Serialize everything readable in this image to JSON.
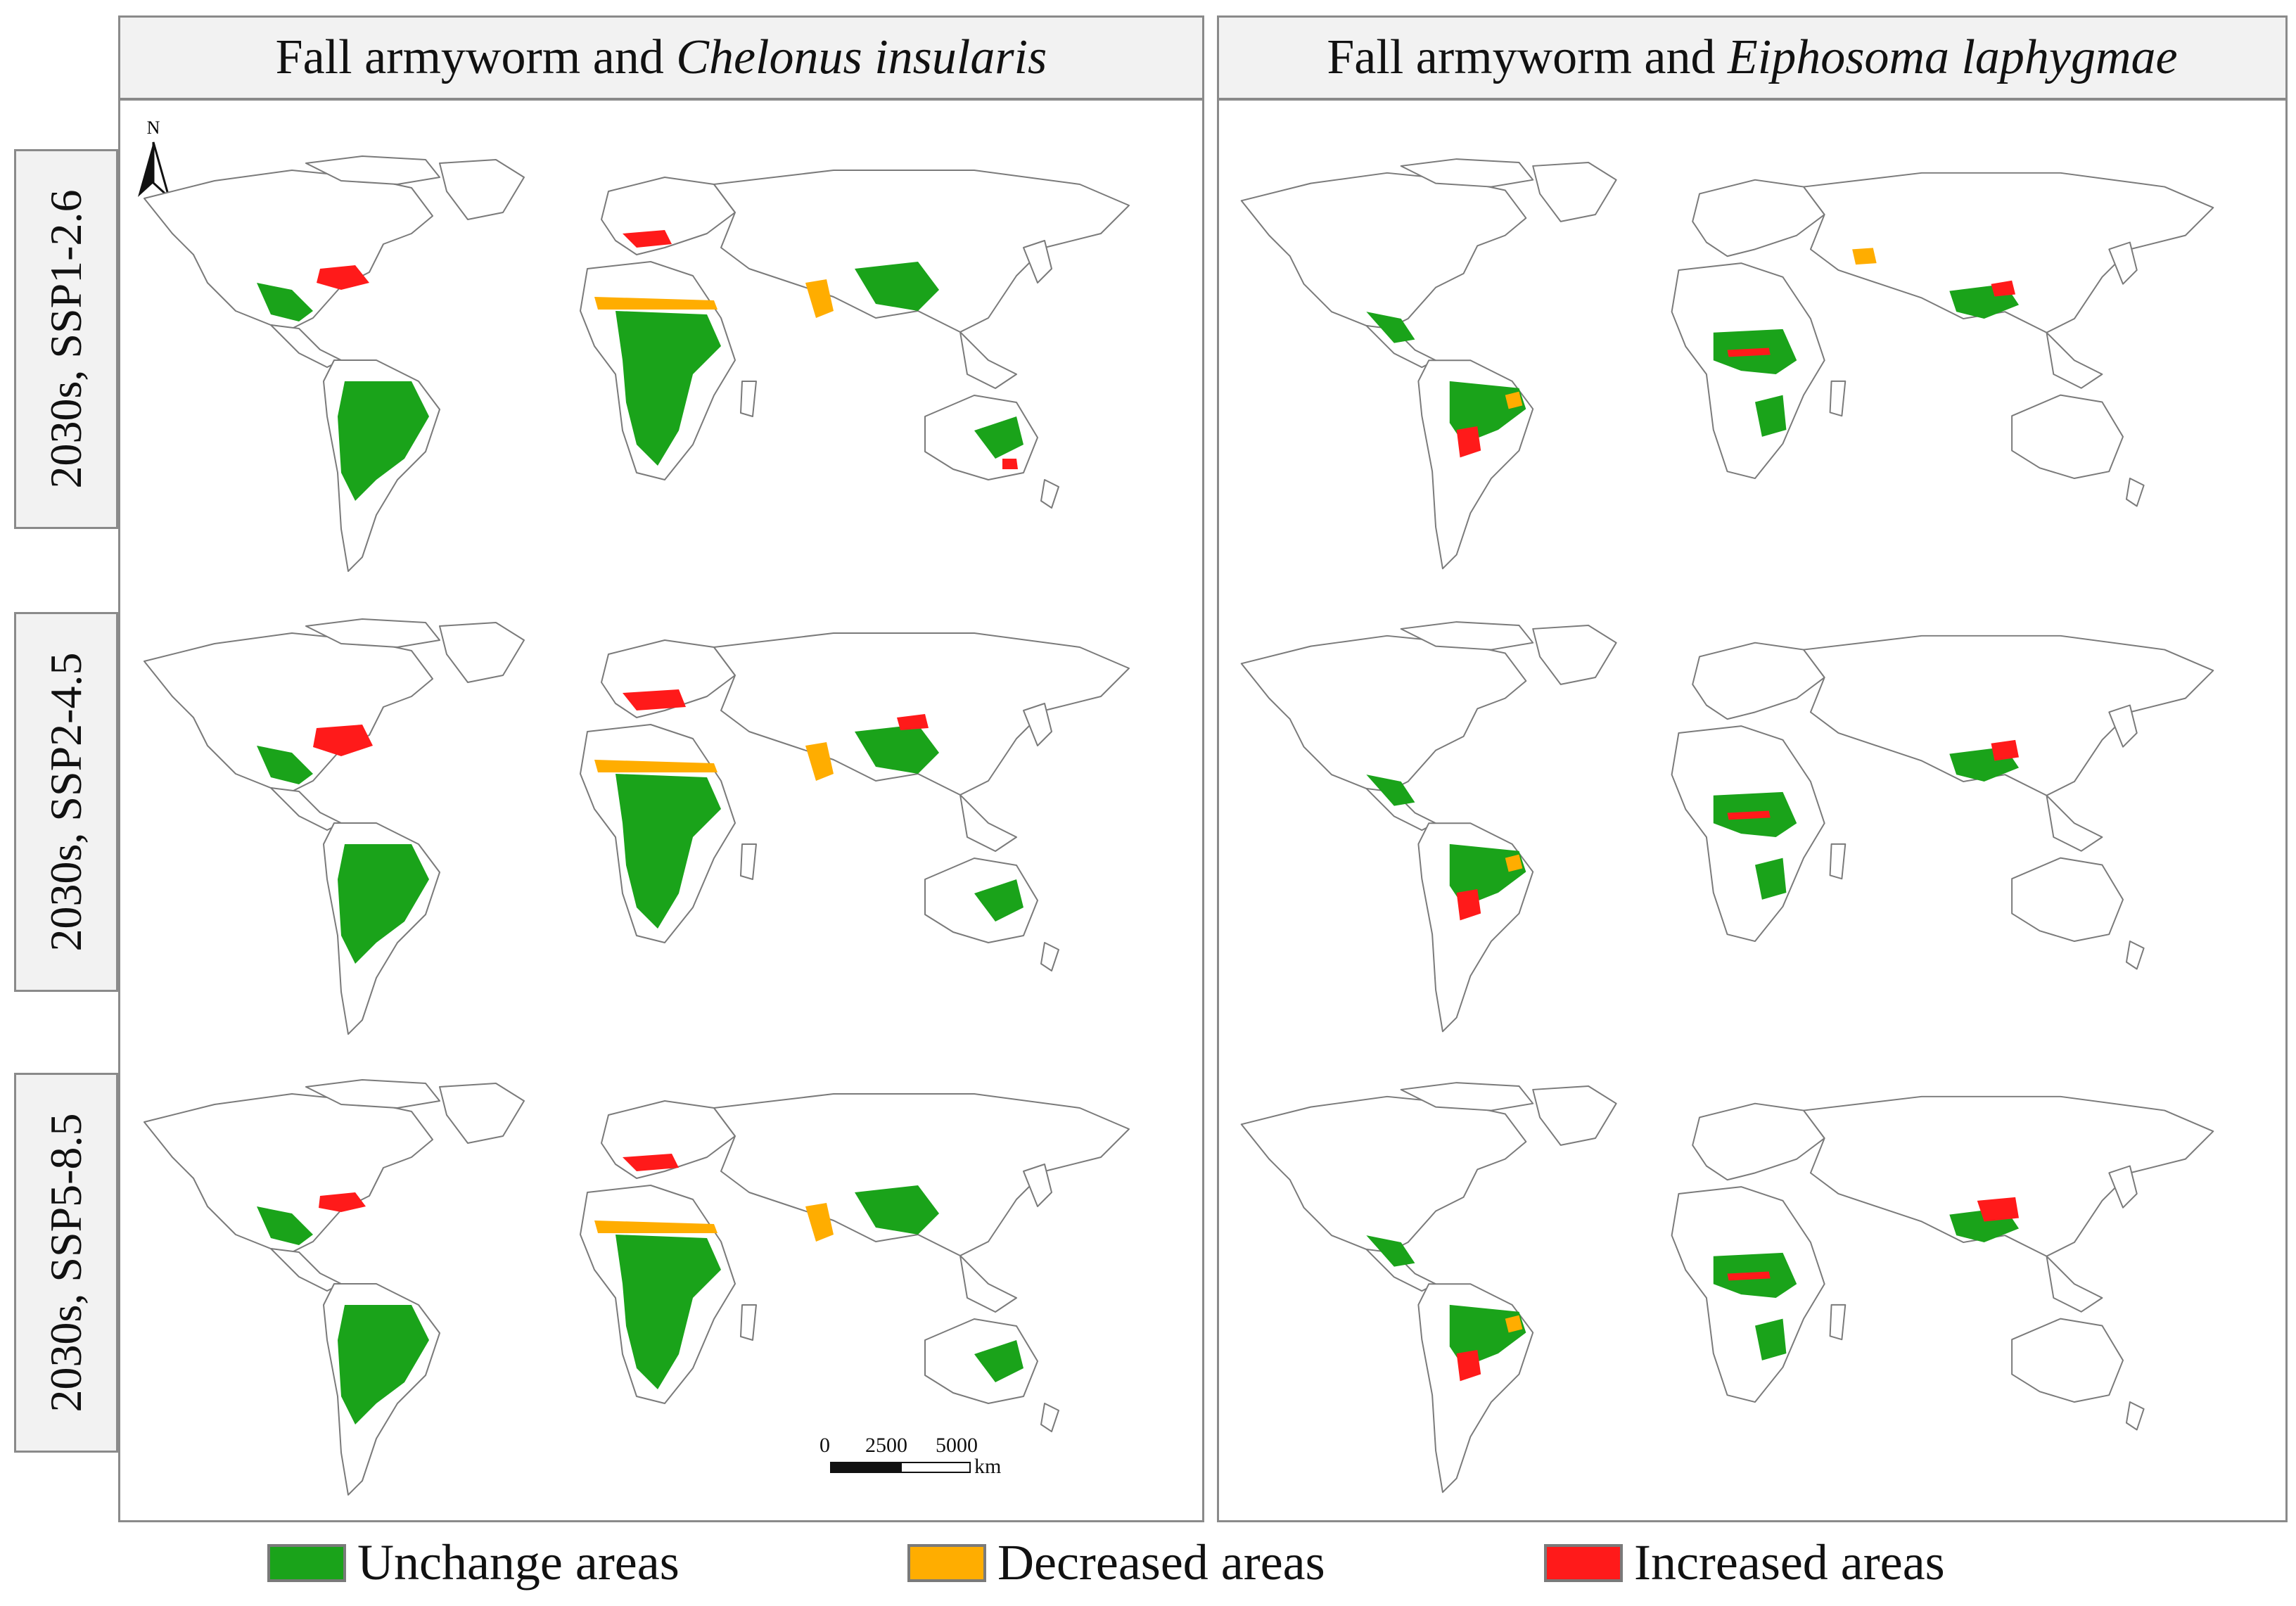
{
  "columns": [
    {
      "prefix": "Fall armyworm and ",
      "species": "Chelonus insularis"
    },
    {
      "prefix": "Fall armyworm and ",
      "species": "Eiphosoma laphygmae"
    }
  ],
  "rows": [
    {
      "label": "2030s, SSP1-2.6"
    },
    {
      "label": "2030s, SSP2-4.5"
    },
    {
      "label": "2030s, SSP5-8.5"
    }
  ],
  "legend": [
    {
      "label": "Unchange areas",
      "color": "#1aa31a"
    },
    {
      "label": "Decreased areas",
      "color": "#ffad00"
    },
    {
      "label": "Increased areas",
      "color": "#ff1a1a"
    }
  ],
  "scale_bar": {
    "ticks": [
      "0",
      "2500",
      "5000"
    ],
    "unit": "km"
  },
  "north_arrow": {
    "label": "N"
  },
  "colors": {
    "outline": "#7a7a7a",
    "header_bg": "#f2f2f2",
    "border": "#8a8a8a"
  }
}
